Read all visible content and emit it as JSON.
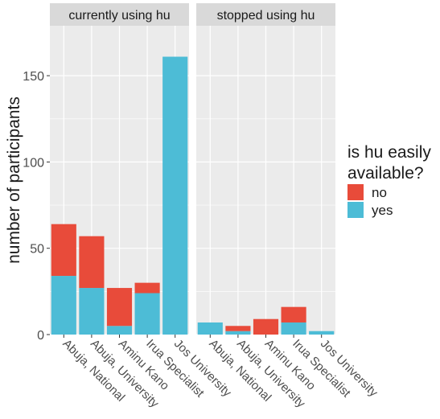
{
  "chart_data": {
    "type": "bar",
    "stacked": true,
    "ylabel": "number of participants",
    "xlabel": "",
    "ylim": [
      0,
      170
    ],
    "yticks": [
      0,
      50,
      100,
      150
    ],
    "grid": true,
    "categories": [
      "Abuja, National",
      "Abuja, University",
      "Aminu Kano",
      "Irua Specialist",
      "Jos University"
    ],
    "legend": {
      "title_lines": [
        "is hu easily",
        "available?"
      ],
      "placement": "right",
      "entries": [
        {
          "label": "no",
          "color": "#E84B3A"
        },
        {
          "label": "yes",
          "color": "#4DBCD6"
        }
      ]
    },
    "panels": [
      {
        "title": "currently using hu",
        "series": [
          {
            "name": "yes",
            "values": [
              34,
              27,
              5,
              24,
              161
            ]
          },
          {
            "name": "no",
            "values": [
              30,
              30,
              22,
              6,
              0
            ]
          }
        ]
      },
      {
        "title": "stopped using hu",
        "series": [
          {
            "name": "yes",
            "values": [
              7,
              2,
              0,
              7,
              2
            ]
          },
          {
            "name": "no",
            "values": [
              0,
              3,
              9,
              9,
              0
            ]
          }
        ]
      }
    ],
    "colors": {
      "panel_background": "#EBEBEB",
      "strip_background": "#D9D9D9",
      "grid": "#FFFFFF",
      "text": "#1A1A1A",
      "tick_text": "#4D4D4D"
    }
  }
}
